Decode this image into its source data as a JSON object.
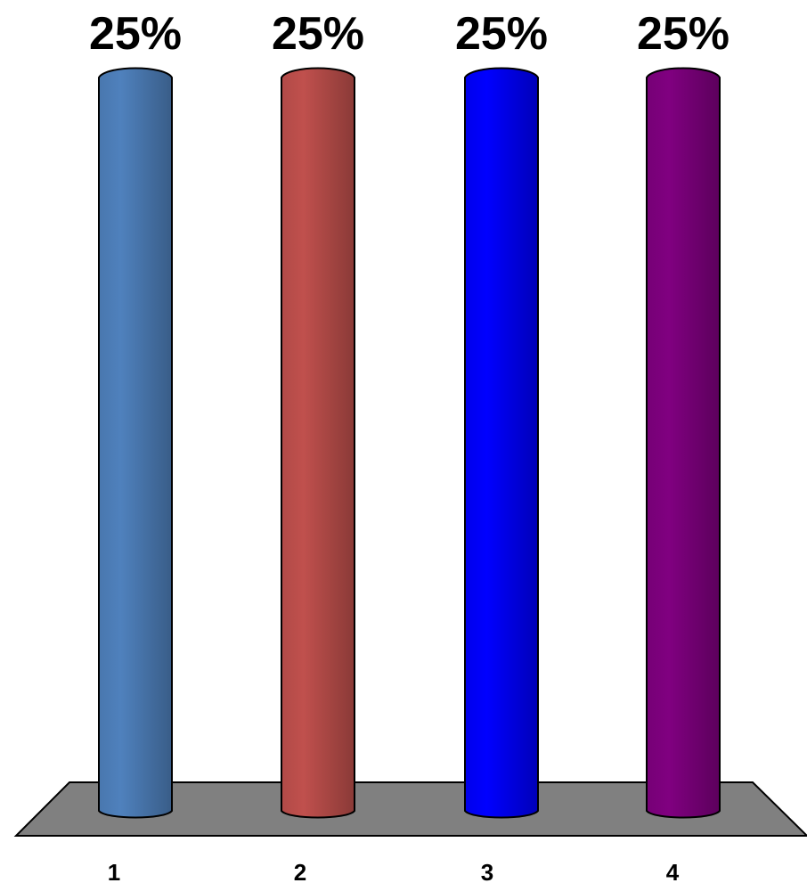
{
  "chart_data": {
    "type": "bar",
    "categories": [
      "1",
      "2",
      "3",
      "4"
    ],
    "values": [
      25,
      25,
      25,
      25
    ],
    "data_labels": [
      "25%",
      "25%",
      "25%",
      "25%"
    ],
    "value_unit": "%",
    "ylim": [
      0,
      25
    ],
    "grid": false,
    "legend": "none",
    "colors": [
      "#4f81bd",
      "#c0504d",
      "#0000ff",
      "#800080"
    ],
    "floor_color": "#808080"
  }
}
